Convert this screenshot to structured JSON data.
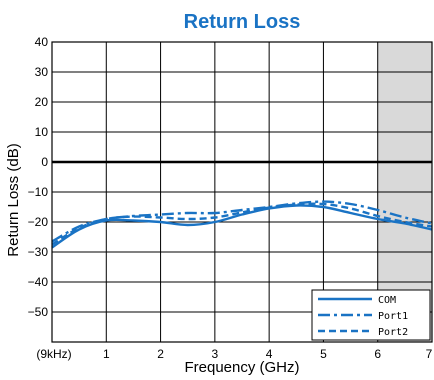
{
  "chart_data": {
    "type": "line",
    "title": "Return Loss",
    "xlabel": "Frequency (GHz)",
    "ylabel": "Return Loss (dB)",
    "xlim": [
      0,
      7
    ],
    "ylim": [
      -60,
      40
    ],
    "x_ticks": [
      {
        "value": 0,
        "label": "(9kHz)"
      },
      {
        "value": 1,
        "label": "1"
      },
      {
        "value": 2,
        "label": "2"
      },
      {
        "value": 3,
        "label": "3"
      },
      {
        "value": 4,
        "label": "4"
      },
      {
        "value": 5,
        "label": "5"
      },
      {
        "value": 6,
        "label": "6"
      },
      {
        "value": 7,
        "label": "7"
      }
    ],
    "y_ticks": [
      {
        "value": 40,
        "label": "40"
      },
      {
        "value": 30,
        "label": "30"
      },
      {
        "value": 20,
        "label": "20"
      },
      {
        "value": 10,
        "label": "10"
      },
      {
        "value": 0,
        "label": "0"
      },
      {
        "value": -10,
        "label": "−10"
      },
      {
        "value": -20,
        "label": "−20"
      },
      {
        "value": -30,
        "label": "−30"
      },
      {
        "value": -40,
        "label": "−40"
      },
      {
        "value": -50,
        "label": "−50"
      }
    ],
    "grid": true,
    "shaded_region": {
      "x_from": 6,
      "x_to": 7,
      "color": "#d9d9d9"
    },
    "legend_position": "bottom-right",
    "line_color": "#1a73c4",
    "series": [
      {
        "name": "COM",
        "style": "solid",
        "x": [
          0,
          0.5,
          1,
          1.5,
          2,
          2.5,
          3,
          3.5,
          4,
          4.5,
          5,
          5.5,
          6,
          6.5,
          7
        ],
        "y": [
          -28.5,
          -22.5,
          -19.5,
          -19.5,
          -20,
          -21,
          -20,
          -17.5,
          -15.5,
          -14.5,
          -15,
          -17,
          -19,
          -20.5,
          -22.5
        ]
      },
      {
        "name": "Port1",
        "style": "dashdot",
        "x": [
          0,
          0.5,
          1,
          1.5,
          2,
          2.5,
          3,
          3.5,
          4,
          4.5,
          5,
          5.5,
          6,
          6.5,
          7
        ],
        "y": [
          -26.5,
          -21.5,
          -19,
          -18,
          -17.5,
          -17,
          -17,
          -16,
          -15,
          -13.8,
          -13.2,
          -14,
          -16,
          -18.5,
          -20.5
        ]
      },
      {
        "name": "Port2",
        "style": "dashed",
        "x": [
          0,
          0.5,
          1,
          1.5,
          2,
          2.5,
          3,
          3.5,
          4,
          4.5,
          5,
          5.5,
          6,
          6.5,
          7
        ],
        "y": [
          -27.5,
          -22,
          -19,
          -18.2,
          -18.5,
          -19,
          -18.5,
          -16.8,
          -15.2,
          -14.2,
          -14,
          -15.5,
          -18,
          -20,
          -21.5
        ]
      }
    ]
  }
}
